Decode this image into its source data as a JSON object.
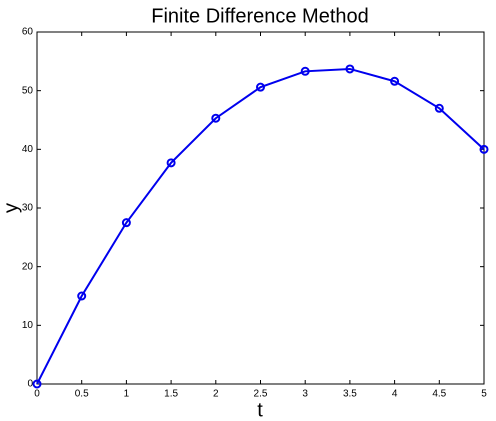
{
  "chart_data": {
    "type": "line",
    "title": "Finite Difference Method",
    "xlabel": "t",
    "ylabel": "y",
    "x": [
      0,
      0.5,
      1,
      1.5,
      2,
      2.5,
      3,
      3.5,
      4,
      4.5,
      5
    ],
    "series": [
      {
        "color": "#0000ee",
        "values": [
          0,
          15,
          27.5,
          37.7,
          45.3,
          50.6,
          53.3,
          53.7,
          51.6,
          47,
          40
        ]
      }
    ],
    "xlim": [
      0,
      5
    ],
    "xticks": [
      0,
      0.5,
      1,
      1.5,
      2,
      2.5,
      3,
      3.5,
      4,
      4.5,
      5
    ],
    "ylim": [
      0,
      60
    ],
    "yticks": [
      0,
      10,
      20,
      30,
      40,
      50,
      60
    ],
    "grid": false,
    "markers": true
  }
}
